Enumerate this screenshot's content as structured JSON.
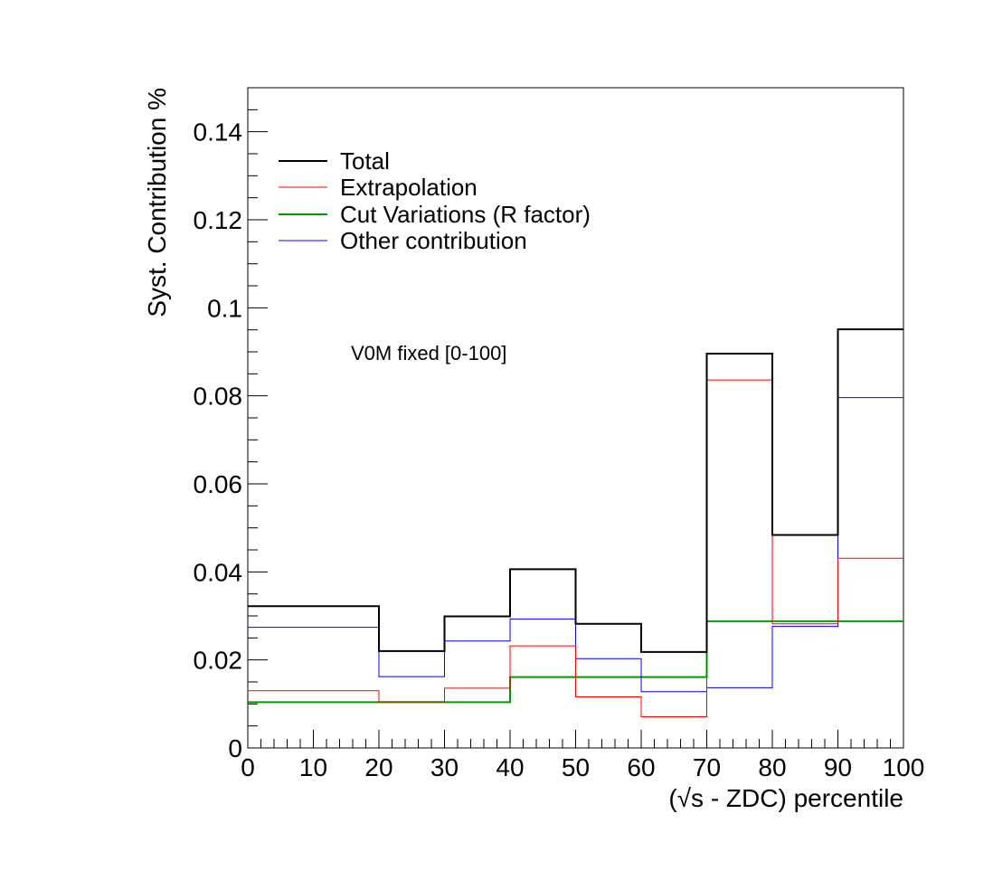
{
  "chart_data": {
    "type": "line",
    "style": "step-histogram",
    "xlabel": "(√s - ZDC) percentile",
    "ylabel": "Syst. Contribution %",
    "xlim": [
      0,
      100
    ],
    "ylim": [
      0,
      0.15
    ],
    "x_ticks": [
      "0",
      "10",
      "20",
      "30",
      "40",
      "50",
      "60",
      "70",
      "80",
      "90",
      "100"
    ],
    "y_ticks": [
      "0",
      "0.02",
      "0.04",
      "0.06",
      "0.08",
      "0.1",
      "0.12",
      "0.14"
    ],
    "annotation": "V0M fixed [0-100]",
    "legend_position": "top-left",
    "grid": false,
    "series": [
      {
        "name": "Total",
        "color": "#000000",
        "bins": [
          [
            0,
            20
          ],
          [
            20,
            30
          ],
          [
            30,
            40
          ],
          [
            40,
            50
          ],
          [
            50,
            60
          ],
          [
            60,
            70
          ],
          [
            70,
            80
          ],
          [
            80,
            90
          ],
          [
            90,
            100
          ]
        ],
        "values": [
          0.0322,
          0.022,
          0.0299,
          0.0406,
          0.0282,
          0.0218,
          0.0896,
          0.0484,
          0.0951
        ]
      },
      {
        "name": "Extrapolation",
        "color": "#ff0000",
        "bins": [
          [
            0,
            20
          ],
          [
            20,
            30
          ],
          [
            30,
            40
          ],
          [
            40,
            50
          ],
          [
            50,
            60
          ],
          [
            60,
            70
          ],
          [
            70,
            80
          ],
          [
            80,
            90
          ],
          [
            90,
            100
          ]
        ],
        "values": [
          0.013,
          0.0105,
          0.0136,
          0.0232,
          0.0116,
          0.0071,
          0.0836,
          0.0282,
          0.0431
        ]
      },
      {
        "name": "Cut Variations (R factor)",
        "color": "#009900",
        "bins": [
          [
            0,
            20
          ],
          [
            20,
            30
          ],
          [
            30,
            40
          ],
          [
            40,
            50
          ],
          [
            50,
            60
          ],
          [
            60,
            70
          ],
          [
            70,
            80
          ],
          [
            80,
            90
          ],
          [
            90,
            100
          ]
        ],
        "values": [
          0.0104,
          0.0104,
          0.0104,
          0.0161,
          0.0161,
          0.0161,
          0.0288,
          0.0288,
          0.0288
        ]
      },
      {
        "name": "Other contribution",
        "color": "#0000ff",
        "bins": [
          [
            0,
            20
          ],
          [
            20,
            30
          ],
          [
            30,
            40
          ],
          [
            40,
            50
          ],
          [
            50,
            60
          ],
          [
            60,
            70
          ],
          [
            70,
            80
          ],
          [
            80,
            90
          ],
          [
            90,
            100
          ]
        ],
        "values": [
          0.0274,
          0.0162,
          0.0243,
          0.0293,
          0.0203,
          0.0128,
          0.0137,
          0.0276,
          0.0796
        ]
      }
    ]
  }
}
